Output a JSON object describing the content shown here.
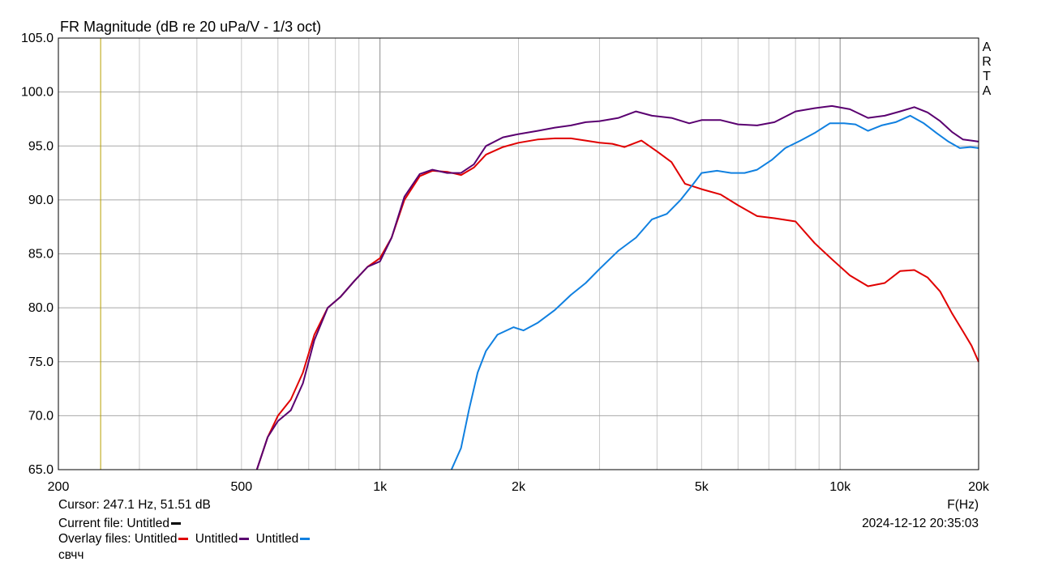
{
  "chart_data": {
    "type": "line",
    "title": "FR Magnitude (dB re 20 uPa/V - 1/3 oct)",
    "xlabel": "F(Hz)",
    "x_scale": "log",
    "xlim": [
      200,
      20000
    ],
    "ylim": [
      65,
      105
    ],
    "grid": true,
    "x_tick_labels": [
      {
        "value": 200,
        "label": "200"
      },
      {
        "value": 500,
        "label": "500"
      },
      {
        "value": 1000,
        "label": "1k"
      },
      {
        "value": 2000,
        "label": "2k"
      },
      {
        "value": 5000,
        "label": "5k"
      },
      {
        "value": 10000,
        "label": "10k"
      },
      {
        "value": 20000,
        "label": "20k"
      }
    ],
    "y_ticks": [
      65,
      70,
      75,
      80,
      85,
      90,
      95,
      100,
      105
    ],
    "y_tick_labels": [
      "65.0",
      "70.0",
      "75.0",
      "80.0",
      "85.0",
      "90.0",
      "95.0",
      "100.0",
      "105.0"
    ],
    "cursor": {
      "value": 247.1,
      "color": "#b8a000"
    },
    "watermark": [
      "A",
      "R",
      "T",
      "A"
    ],
    "series": [
      {
        "name": "Untitled",
        "color": "#e00000",
        "points": [
          [
            540,
            65
          ],
          [
            570,
            68
          ],
          [
            600,
            70
          ],
          [
            640,
            71.5
          ],
          [
            680,
            74
          ],
          [
            720,
            77.5
          ],
          [
            770,
            80
          ],
          [
            820,
            81
          ],
          [
            880,
            82.5
          ],
          [
            940,
            83.8
          ],
          [
            1000,
            84.6
          ],
          [
            1060,
            86.5
          ],
          [
            1130,
            90
          ],
          [
            1220,
            92.2
          ],
          [
            1300,
            92.7
          ],
          [
            1400,
            92.6
          ],
          [
            1500,
            92.3
          ],
          [
            1600,
            93
          ],
          [
            1700,
            94.2
          ],
          [
            1850,
            94.9
          ],
          [
            2000,
            95.3
          ],
          [
            2200,
            95.6
          ],
          [
            2400,
            95.7
          ],
          [
            2600,
            95.7
          ],
          [
            2800,
            95.5
          ],
          [
            3000,
            95.3
          ],
          [
            3200,
            95.2
          ],
          [
            3400,
            94.9
          ],
          [
            3700,
            95.5
          ],
          [
            4000,
            94.5
          ],
          [
            4300,
            93.5
          ],
          [
            4600,
            91.5
          ],
          [
            5000,
            91
          ],
          [
            5500,
            90.5
          ],
          [
            6000,
            89.5
          ],
          [
            6600,
            88.5
          ],
          [
            7200,
            88.3
          ],
          [
            8000,
            88
          ],
          [
            8800,
            86
          ],
          [
            9600,
            84.5
          ],
          [
            10500,
            83
          ],
          [
            11500,
            82
          ],
          [
            12500,
            82.3
          ],
          [
            13500,
            83.4
          ],
          [
            14500,
            83.5
          ],
          [
            15500,
            82.8
          ],
          [
            16500,
            81.5
          ],
          [
            17500,
            79.5
          ],
          [
            18500,
            77.8
          ],
          [
            19300,
            76.5
          ],
          [
            20000,
            75
          ]
        ]
      },
      {
        "name": "Untitled",
        "color": "#5a0070",
        "points": [
          [
            540,
            65
          ],
          [
            570,
            68
          ],
          [
            600,
            69.5
          ],
          [
            640,
            70.5
          ],
          [
            680,
            73
          ],
          [
            720,
            77
          ],
          [
            770,
            80
          ],
          [
            820,
            81
          ],
          [
            880,
            82.5
          ],
          [
            940,
            83.8
          ],
          [
            1000,
            84.3
          ],
          [
            1060,
            86.5
          ],
          [
            1130,
            90.3
          ],
          [
            1220,
            92.4
          ],
          [
            1300,
            92.8
          ],
          [
            1400,
            92.5
          ],
          [
            1500,
            92.5
          ],
          [
            1600,
            93.3
          ],
          [
            1700,
            95
          ],
          [
            1850,
            95.8
          ],
          [
            2000,
            96.1
          ],
          [
            2200,
            96.4
          ],
          [
            2400,
            96.7
          ],
          [
            2600,
            96.9
          ],
          [
            2800,
            97.2
          ],
          [
            3000,
            97.3
          ],
          [
            3300,
            97.6
          ],
          [
            3600,
            98.2
          ],
          [
            3900,
            97.8
          ],
          [
            4300,
            97.6
          ],
          [
            4700,
            97.1
          ],
          [
            5000,
            97.4
          ],
          [
            5500,
            97.4
          ],
          [
            6000,
            97
          ],
          [
            6600,
            96.9
          ],
          [
            7200,
            97.2
          ],
          [
            8000,
            98.2
          ],
          [
            8800,
            98.5
          ],
          [
            9600,
            98.7
          ],
          [
            10500,
            98.4
          ],
          [
            11500,
            97.6
          ],
          [
            12500,
            97.8
          ],
          [
            13500,
            98.2
          ],
          [
            14500,
            98.6
          ],
          [
            15500,
            98.1
          ],
          [
            16500,
            97.3
          ],
          [
            17500,
            96.3
          ],
          [
            18500,
            95.6
          ],
          [
            19300,
            95.5
          ],
          [
            20000,
            95.4
          ]
        ]
      },
      {
        "name": "Untitled",
        "color": "#1080e0",
        "points": [
          [
            1430,
            65
          ],
          [
            1500,
            67
          ],
          [
            1560,
            70.5
          ],
          [
            1630,
            74
          ],
          [
            1700,
            76
          ],
          [
            1800,
            77.5
          ],
          [
            1950,
            78.2
          ],
          [
            2050,
            77.9
          ],
          [
            2200,
            78.6
          ],
          [
            2400,
            79.8
          ],
          [
            2600,
            81.2
          ],
          [
            2800,
            82.3
          ],
          [
            3000,
            83.6
          ],
          [
            3300,
            85.3
          ],
          [
            3600,
            86.5
          ],
          [
            3900,
            88.2
          ],
          [
            4200,
            88.7
          ],
          [
            4500,
            90
          ],
          [
            4800,
            91.5
          ],
          [
            5000,
            92.5
          ],
          [
            5400,
            92.7
          ],
          [
            5800,
            92.5
          ],
          [
            6200,
            92.5
          ],
          [
            6600,
            92.8
          ],
          [
            7100,
            93.7
          ],
          [
            7600,
            94.8
          ],
          [
            8200,
            95.5
          ],
          [
            8800,
            96.2
          ],
          [
            9500,
            97.1
          ],
          [
            10200,
            97.1
          ],
          [
            10800,
            97
          ],
          [
            11500,
            96.4
          ],
          [
            12300,
            96.9
          ],
          [
            13200,
            97.2
          ],
          [
            14200,
            97.8
          ],
          [
            15200,
            97.1
          ],
          [
            16200,
            96.2
          ],
          [
            17200,
            95.4
          ],
          [
            18200,
            94.8
          ],
          [
            19200,
            94.9
          ],
          [
            20000,
            94.8
          ]
        ]
      }
    ]
  },
  "footer": {
    "cursor_text": "Cursor: 247.1 Hz, 51.51 dB",
    "current_file_label": "Current file: Untitled",
    "current_file_color": "#000000",
    "overlay_label": "Overlay files:",
    "overlay_files": [
      {
        "name": "Untitled",
        "color": "#e00000"
      },
      {
        "name": "Untitled",
        "color": "#5a0070"
      },
      {
        "name": "Untitled",
        "color": "#1080e0"
      }
    ],
    "note": "свчч",
    "freq_axis_label": "F(Hz)",
    "timestamp": "2024-12-12  20:35:03"
  }
}
